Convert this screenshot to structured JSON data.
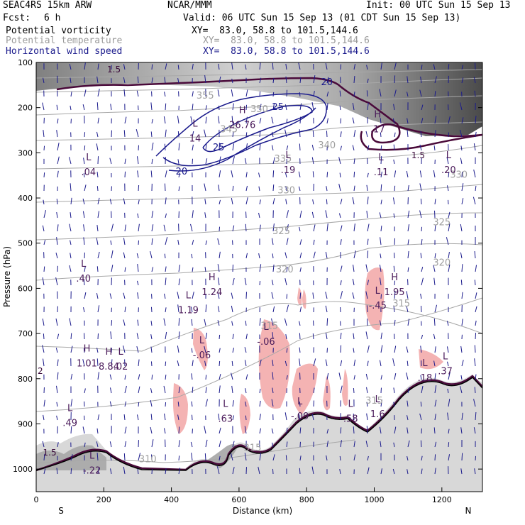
{
  "header": {
    "model": "SEAC4RS 15km ARW",
    "center": "NCAR/MMM",
    "init": "Init: 00 UTC Sun 15 Sep 13",
    "fcst_label": "Fcst:",
    "fcst_value": "6 h",
    "valid": "Valid: 06 UTC Sun 15 Sep 13 (01 CDT Sun 15 Sep 13)",
    "fields": [
      {
        "name": "Potential vorticity",
        "xy": "XY=  83.0, 58.8 to 101.5,144.6",
        "color": "#000000"
      },
      {
        "name": "Potential temperature",
        "xy": "XY=  83.0, 58.8 to 101.5,144.6",
        "color": "#9a9a9a"
      },
      {
        "name": "Horizontal wind speed",
        "xy": "XY=  83.0, 58.8 to 101.5,144.6",
        "color": "#1a1a8c"
      }
    ]
  },
  "chart_data": {
    "type": "cross-section",
    "xlabel": "Distance (km)",
    "ylabel": "Pressure (hPa)",
    "xlim": [
      0,
      1320
    ],
    "ylim": [
      1050,
      100
    ],
    "x_ticks": [
      0,
      200,
      400,
      600,
      800,
      1000,
      1200
    ],
    "y_ticks": [
      100,
      200,
      300,
      400,
      500,
      600,
      700,
      800,
      900,
      1000
    ],
    "left_end_label": "S",
    "right_end_label": "N",
    "colors": {
      "pv_positive_shading": "#f4b3b3",
      "pv_contour": "#4a0a3a",
      "theta": "#a0a0a0",
      "wind": "#1a1a8c",
      "terrain": "#000000"
    },
    "theta_contours": [
      {
        "label": "310",
        "x": 330,
        "p": 985
      },
      {
        "label": "315",
        "x": 1080,
        "p": 640
      },
      {
        "label": "315",
        "x": 690,
        "p": 690
      },
      {
        "label": "315",
        "x": 1000,
        "p": 855
      },
      {
        "label": "315",
        "x": 640,
        "p": 960
      },
      {
        "label": "320",
        "x": 1200,
        "p": 550
      },
      {
        "label": "320",
        "x": 735,
        "p": 565
      },
      {
        "label": "325",
        "x": 1200,
        "p": 460
      },
      {
        "label": "325",
        "x": 725,
        "p": 480
      },
      {
        "label": "330",
        "x": 1250,
        "p": 355
      },
      {
        "label": "330",
        "x": 740,
        "p": 390
      },
      {
        "label": "335",
        "x": 730,
        "p": 320
      },
      {
        "label": "340",
        "x": 860,
        "p": 290
      },
      {
        "label": "345",
        "x": 570,
        "p": 255
      },
      {
        "label": "350",
        "x": 660,
        "p": 210
      },
      {
        "label": "355",
        "x": 500,
        "p": 180
      }
    ],
    "pv_labels": [
      {
        "label": "1.5",
        "x": 230,
        "p": 122
      },
      {
        "label": "1.5",
        "x": 1130,
        "p": 312
      },
      {
        "label": "1.5",
        "x": 40,
        "p": 970
      }
    ],
    "wind_speed_contours": [
      {
        "label": "20",
        "x": 860,
        "p": 150
      },
      {
        "label": "20",
        "x": 430,
        "p": 348
      },
      {
        "label": "25",
        "x": 540,
        "p": 295
      },
      {
        "label": "25",
        "x": 715,
        "p": 205
      }
    ],
    "extrema": [
      {
        "type": "L",
        "value": ".04",
        "x": 155,
        "p": 345
      },
      {
        "type": "H",
        "value": "26.76",
        "x": 610,
        "p": 240
      },
      {
        "type": "L",
        "value": "14",
        "x": 470,
        "p": 270
      },
      {
        "type": "L",
        "value": ".19",
        "x": 745,
        "p": 340
      },
      {
        "type": "L",
        "value": ".11",
        "x": 1020,
        "p": 345
      },
      {
        "type": "L",
        "value": ".20",
        "x": 1220,
        "p": 340
      },
      {
        "type": "H",
        "value": ".17",
        "x": 1010,
        "p": 250
      },
      {
        "type": "L",
        "value": ".40",
        "x": 140,
        "p": 580
      },
      {
        "type": "H",
        "value": "1.24",
        "x": 520,
        "p": 610
      },
      {
        "type": "L",
        "value": "1.19",
        "x": 450,
        "p": 650
      },
      {
        "type": "L",
        "value": "-.45",
        "x": 1010,
        "p": 640
      },
      {
        "type": "H",
        "value": "1.95",
        "x": 1060,
        "p": 610
      },
      {
        "type": "L",
        "value": "-.06",
        "x": 490,
        "p": 750
      },
      {
        "type": "L",
        "value": "-.06",
        "x": 680,
        "p": 720
      },
      {
        "type": "H",
        "value": "1.01",
        "x": 150,
        "p": 768
      },
      {
        "type": "H",
        "value": "8.84",
        "x": 215,
        "p": 775
      },
      {
        "type": "L",
        "value": ".02",
        "x": 250,
        "p": 775
      },
      {
        "type": "L",
        "value": ".18",
        "x": 1150,
        "p": 800
      },
      {
        "type": "L",
        "value": ".37",
        "x": 1210,
        "p": 785
      },
      {
        "type": "L",
        "value": ".63",
        "x": 560,
        "p": 890
      },
      {
        "type": "L",
        "value": "-.09",
        "x": 780,
        "p": 885
      },
      {
        "type": "L",
        "value": ".58",
        "x": 930,
        "p": 890
      },
      {
        "type": "L",
        "value": "1.6",
        "x": 1010,
        "p": 880
      },
      {
        "type": "L",
        "value": ".49",
        "x": 100,
        "p": 900
      },
      {
        "type": "L",
        "value": "-.22",
        "x": 165,
        "p": 1005
      }
    ],
    "left_edge_label": "2"
  }
}
